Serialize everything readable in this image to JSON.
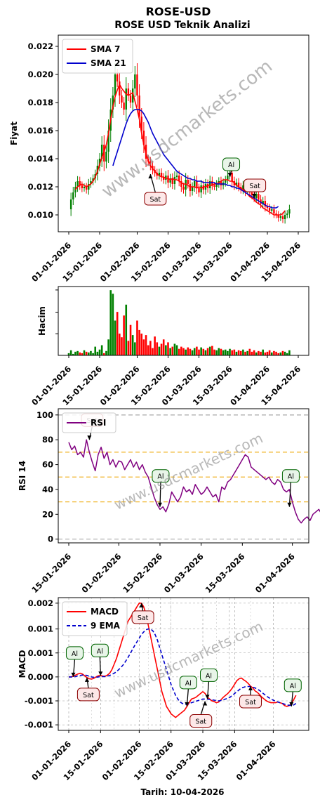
{
  "title": "ROSE-USD",
  "footer": "Tarih: 10-04-2026",
  "watermark": "www.usdcmarkets.com",
  "colors": {
    "up": "#008000",
    "down": "#ff0000",
    "sma7": "#ff0000",
    "sma21": "#0000cd",
    "rsi": "#800080",
    "macd": "#ff0000",
    "ema": "#0000cd",
    "signal_buy": "#006400",
    "signal_sell": "#8b0000"
  },
  "chart_data": [
    {
      "type": "line",
      "subtitle": "ROSE USD Teknik Analizi",
      "ylabel": "Fiyat",
      "ylim": [
        0.0088,
        0.0228
      ],
      "yticks": [
        "0.010",
        "0.012",
        "0.014",
        "0.016",
        "0.018",
        "0.020",
        "0.022"
      ],
      "ytick_values": [
        0.01,
        0.012,
        0.014,
        0.016,
        0.018,
        0.02,
        0.022
      ],
      "xticks": [
        "01-01-2026",
        "15-01-2026",
        "01-02-2026",
        "15-02-2026",
        "01-03-2026",
        "15-03-2026",
        "01-04-2026",
        "15-04-2026"
      ],
      "xtick_days": [
        0,
        14,
        31,
        45,
        59,
        73,
        90,
        104
      ],
      "legend": [
        "SMA 7",
        "SMA 21"
      ],
      "close": [
        0.0104,
        0.0111,
        0.0116,
        0.012,
        0.0124,
        0.0121,
        0.0119,
        0.012,
        0.0118,
        0.0122,
        0.0124,
        0.0126,
        0.0129,
        0.0135,
        0.014,
        0.015,
        0.0138,
        0.0145,
        0.016,
        0.0175,
        0.0185,
        0.02,
        0.0195,
        0.0185,
        0.018,
        0.0175,
        0.019,
        0.0185,
        0.018,
        0.019,
        0.02,
        0.0185,
        0.017,
        0.016,
        0.015,
        0.014,
        0.0138,
        0.0135,
        0.0132,
        0.013,
        0.0128,
        0.013,
        0.0127,
        0.0125,
        0.0128,
        0.0123,
        0.0126,
        0.0122,
        0.0127,
        0.0128,
        0.0124,
        0.012,
        0.0118,
        0.0125,
        0.0122,
        0.0117,
        0.012,
        0.0124,
        0.0119,
        0.0116,
        0.0121,
        0.0118,
        0.0122,
        0.0119,
        0.0124,
        0.0121,
        0.012,
        0.0122,
        0.0124,
        0.0121,
        0.0123,
        0.0125,
        0.0128,
        0.013,
        0.0124,
        0.0121,
        0.0123,
        0.012,
        0.0118,
        0.0121,
        0.0117,
        0.0119,
        0.0116,
        0.0114,
        0.0112,
        0.0115,
        0.0111,
        0.0108,
        0.011,
        0.0106,
        0.0105,
        0.0103,
        0.0104,
        0.0101,
        0.01,
        0.0098,
        0.0099,
        0.0097,
        0.01,
        0.0101,
        0.0104
      ],
      "sma7_start_day": 3,
      "sma7": [
        0.0118,
        0.012,
        0.0121,
        0.0122,
        0.0121,
        0.012,
        0.0121,
        0.0122,
        0.0124,
        0.0127,
        0.0131,
        0.0136,
        0.0141,
        0.0145,
        0.015,
        0.0158,
        0.0168,
        0.0177,
        0.0184,
        0.0189,
        0.0193,
        0.019,
        0.0188,
        0.0186,
        0.0185,
        0.0186,
        0.0187,
        0.0181,
        0.0175,
        0.0168,
        0.0158,
        0.015,
        0.0144,
        0.0139,
        0.0135,
        0.0133,
        0.0131,
        0.0129,
        0.0128,
        0.0127,
        0.0127,
        0.0126,
        0.0126,
        0.0125,
        0.0126,
        0.0125,
        0.0125,
        0.0124,
        0.0123,
        0.0122,
        0.0122,
        0.0121,
        0.012,
        0.012,
        0.012,
        0.0119,
        0.012,
        0.0119,
        0.012,
        0.012,
        0.0121,
        0.0121,
        0.0121,
        0.0122,
        0.0122,
        0.0123,
        0.0124,
        0.0125,
        0.0125,
        0.0125,
        0.0124,
        0.0124,
        0.0123,
        0.0121,
        0.012,
        0.0119,
        0.0118,
        0.0116,
        0.0115,
        0.0113,
        0.0112,
        0.0111,
        0.0109,
        0.0108,
        0.0107,
        0.0105,
        0.0104,
        0.0103,
        0.0102,
        0.0101,
        0.01,
        0.01,
        0.01,
        0.01,
        0.0101,
        0.0103
      ],
      "sma21_start_day": 20,
      "sma21": [
        0.0135,
        0.014,
        0.0145,
        0.015,
        0.0155,
        0.016,
        0.0165,
        0.0169,
        0.0172,
        0.0174,
        0.0175,
        0.0175,
        0.0175,
        0.0174,
        0.0172,
        0.0169,
        0.0166,
        0.0162,
        0.0158,
        0.0155,
        0.0152,
        0.0149,
        0.0146,
        0.0143,
        0.0141,
        0.0139,
        0.0137,
        0.0135,
        0.0133,
        0.0131,
        0.013,
        0.0129,
        0.0128,
        0.0127,
        0.0126,
        0.0126,
        0.0125,
        0.0125,
        0.0124,
        0.0124,
        0.0124,
        0.0123,
        0.0123,
        0.0123,
        0.0123,
        0.0123,
        0.0123,
        0.0122,
        0.0122,
        0.0122,
        0.0122,
        0.0122,
        0.0121,
        0.0121,
        0.012,
        0.012,
        0.0119,
        0.0119,
        0.0118,
        0.0117,
        0.0116,
        0.0115,
        0.0114,
        0.0113,
        0.0112,
        0.0111,
        0.011,
        0.0109,
        0.0108,
        0.0107,
        0.0106,
        0.0106,
        0.0105,
        0.0105,
        0.0105,
        0.0106
      ],
      "signals": [
        {
          "label": "Sat",
          "day": 37,
          "value": 0.0129,
          "kind": "sell"
        },
        {
          "label": "Al",
          "day": 73,
          "value": 0.0127,
          "kind": "buy"
        },
        {
          "label": "Sat",
          "day": 84,
          "value": 0.0112,
          "kind": "sell"
        }
      ]
    },
    {
      "type": "bar",
      "ylabel": "Hacim",
      "xticks": [
        "01-01-2026",
        "15-01-2026",
        "01-02-2026",
        "15-02-2026",
        "01-03-2026",
        "15-03-2026",
        "01-04-2026",
        "15-04-2026"
      ],
      "xtick_days": [
        0,
        14,
        31,
        45,
        59,
        73,
        90,
        104
      ],
      "volume": [
        3,
        7,
        2,
        5,
        6,
        4,
        3,
        7,
        5,
        4,
        6,
        3,
        12,
        5,
        8,
        14,
        3,
        6,
        22,
        90,
        85,
        48,
        60,
        30,
        25,
        55,
        70,
        20,
        42,
        28,
        18,
        48,
        35,
        30,
        22,
        28,
        14,
        20,
        10,
        26,
        18,
        12,
        16,
        22,
        14,
        18,
        10,
        12,
        16,
        14,
        9,
        12,
        10,
        8,
        11,
        9,
        7,
        10,
        12,
        8,
        11,
        9,
        7,
        10,
        12,
        13,
        8,
        7,
        10,
        9,
        7,
        8,
        6,
        9,
        7,
        8,
        5,
        7,
        6,
        8,
        5,
        6,
        9,
        5,
        7,
        4,
        6,
        5,
        8,
        4,
        5,
        7,
        4,
        6,
        5,
        3,
        4,
        6,
        5,
        3,
        7
      ],
      "vmax": 95
    },
    {
      "type": "line",
      "ylabel": "RSI 14",
      "ylim": [
        -3,
        105
      ],
      "yticks": [
        "0",
        "20",
        "40",
        "60",
        "80",
        "100"
      ],
      "ytick_values": [
        0,
        20,
        40,
        60,
        80,
        100
      ],
      "xticks": [
        "15-01-2026",
        "01-02-2026",
        "15-02-2026",
        "01-03-2026",
        "15-03-2026",
        "01-04-2026"
      ],
      "xtick_days": [
        14,
        31,
        45,
        59,
        73,
        90
      ],
      "legend": [
        "RSI"
      ],
      "hlines": [
        70,
        50,
        30
      ],
      "start_day": 14,
      "values": [
        78,
        72,
        75,
        68,
        70,
        66,
        80,
        70,
        62,
        55,
        68,
        74,
        65,
        70,
        60,
        64,
        58,
        63,
        62,
        56,
        60,
        64,
        58,
        62,
        56,
        60,
        54,
        50,
        42,
        34,
        28,
        24,
        26,
        22,
        28,
        38,
        34,
        30,
        34,
        42,
        38,
        40,
        36,
        44,
        40,
        36,
        38,
        42,
        38,
        34,
        36,
        30,
        42,
        40,
        46,
        48,
        52,
        56,
        60,
        64,
        68,
        66,
        58,
        56,
        54,
        52,
        50,
        48,
        50,
        46,
        44,
        48,
        46,
        40,
        38,
        40,
        30,
        22,
        16,
        13,
        16,
        18,
        15,
        20,
        22,
        24,
        20,
        16,
        22,
        28,
        24,
        36,
        44,
        51
      ],
      "signals": [
        {
          "label": "Sat",
          "day": 21,
          "value": 80,
          "kind": "sell"
        },
        {
          "label": "Al",
          "day": 45,
          "value": 26,
          "kind": "buy"
        },
        {
          "label": "Al",
          "day": 89,
          "value": 26,
          "kind": "buy"
        }
      ]
    },
    {
      "type": "line",
      "ylabel": "MACD",
      "ylim": [
        -0.00145,
        0.00215
      ],
      "yticks": [
        "-0.001",
        "-0.001",
        "0.000",
        "0.001",
        "0.001",
        "0.002"
      ],
      "ytick_values": [
        -0.0013,
        -0.00065,
        0,
        0.00065,
        0.0013,
        0.002
      ],
      "xticks": [
        "01-01-2026",
        "15-01-2026",
        "01-02-2026",
        "15-02-2026",
        "01-03-2026",
        "15-03-2026",
        "01-04-2026"
      ],
      "xtick_days": [
        0,
        14,
        31,
        45,
        59,
        73,
        90
      ],
      "legend": [
        "MACD",
        "9 EMA"
      ],
      "macd": [
        0.0,
        0.0,
        2e-05,
        5e-05,
        8e-05,
        0.0001,
        8e-05,
        3e-05,
        -2e-05,
        -5e-05,
        -6e-05,
        -4e-05,
        0.0,
        3e-05,
        4e-05,
        2e-05,
        2e-05,
        5e-05,
        0.0001,
        0.0002,
        0.00035,
        0.0005,
        0.0007,
        0.0009,
        0.0011,
        0.0013,
        0.0015,
        0.0016,
        0.0017,
        0.0018,
        0.0019,
        0.002,
        0.002,
        0.0019,
        0.0017,
        0.0014,
        0.0011,
        0.0008,
        0.0005,
        0.0002,
        -0.0001,
        -0.0004,
        -0.0006,
        -0.0008,
        -0.0009,
        -0.001,
        -0.00105,
        -0.0011,
        -0.00105,
        -0.001,
        -0.00095,
        -0.0009,
        -0.0008,
        -0.0007,
        -0.0006,
        -0.00058,
        -0.00055,
        -0.0005,
        -0.00045,
        -0.0004,
        -0.00045,
        -0.00055,
        -0.0006,
        -0.00065,
        -0.00067,
        -0.0007,
        -0.00068,
        -0.00062,
        -0.00055,
        -0.0005,
        -0.00045,
        -0.00038,
        -0.0003,
        -0.0002,
        -0.0001,
        -5e-05,
        -3e-05,
        -8e-05,
        -0.00012,
        -0.00018,
        -0.00025,
        -0.0003,
        -0.00038,
        -0.00042,
        -0.00048,
        -0.00055,
        -0.0006,
        -0.00065,
        -0.00068,
        -0.0007,
        -0.0007,
        -0.0007,
        -0.00068,
        -0.0007,
        -0.00072,
        -0.00078,
        -0.0008,
        -0.00078,
        -0.00072,
        -0.00062,
        -0.0005
      ],
      "ema": [
        0.0,
        0.0,
        0.0,
        1e-05,
        3e-05,
        4e-05,
        5e-05,
        5e-05,
        4e-05,
        2e-05,
        0.0,
        -1e-05,
        -1e-05,
        0.0,
        1e-05,
        1e-05,
        1e-05,
        2e-05,
        4e-05,
        7e-05,
        0.0001,
        0.00014,
        0.0002,
        0.00026,
        0.00033,
        0.00042,
        0.00052,
        0.00063,
        0.00074,
        0.00085,
        0.00095,
        0.00105,
        0.00115,
        0.00122,
        0.00128,
        0.0013,
        0.0013,
        0.00125,
        0.00115,
        0.001,
        0.0008,
        0.0006,
        0.0004,
        0.0002,
        0.0,
        -0.0002,
        -0.00035,
        -0.0005,
        -0.0006,
        -0.00068,
        -0.00072,
        -0.00074,
        -0.00074,
        -0.00072,
        -0.0007,
        -0.00068,
        -0.00066,
        -0.00064,
        -0.00062,
        -0.0006,
        -0.0006,
        -0.0006,
        -0.00061,
        -0.00062,
        -0.00063,
        -0.00064,
        -0.00065,
        -0.00064,
        -0.00062,
        -0.0006,
        -0.00058,
        -0.00055,
        -0.0005,
        -0.00045,
        -0.0004,
        -0.00035,
        -0.0003,
        -0.00028,
        -0.00026,
        -0.00026,
        -0.00026,
        -0.00028,
        -0.0003,
        -0.00033,
        -0.00037,
        -0.00042,
        -0.00047,
        -0.00052,
        -0.00056,
        -0.0006,
        -0.00063,
        -0.00066,
        -0.00068,
        -0.0007,
        -0.00072,
        -0.00074,
        -0.00076,
        -0.00077,
        -0.00077,
        -0.00076,
        -0.00072
      ],
      "signals": [
        {
          "label": "Al",
          "day": 2,
          "value": 0.0,
          "kind": "buy"
        },
        {
          "label": "Sat",
          "day": 8,
          "value": -2e-05,
          "kind": "sell"
        },
        {
          "label": "Al",
          "day": 14,
          "value": 3e-05,
          "kind": "buy"
        },
        {
          "label": "Sat",
          "day": 32,
          "value": 0.002,
          "kind": "sell"
        },
        {
          "label": "Al",
          "day": 52,
          "value": -0.0008,
          "kind": "buy"
        },
        {
          "label": "Sat",
          "day": 60,
          "value": -0.00066,
          "kind": "sell"
        },
        {
          "label": "Al",
          "day": 61,
          "value": -0.0006,
          "kind": "buy"
        },
        {
          "label": "Sat",
          "day": 80,
          "value": -0.00025,
          "kind": "sell"
        },
        {
          "label": "Al",
          "day": 98,
          "value": -0.0008,
          "kind": "buy"
        }
      ]
    }
  ]
}
